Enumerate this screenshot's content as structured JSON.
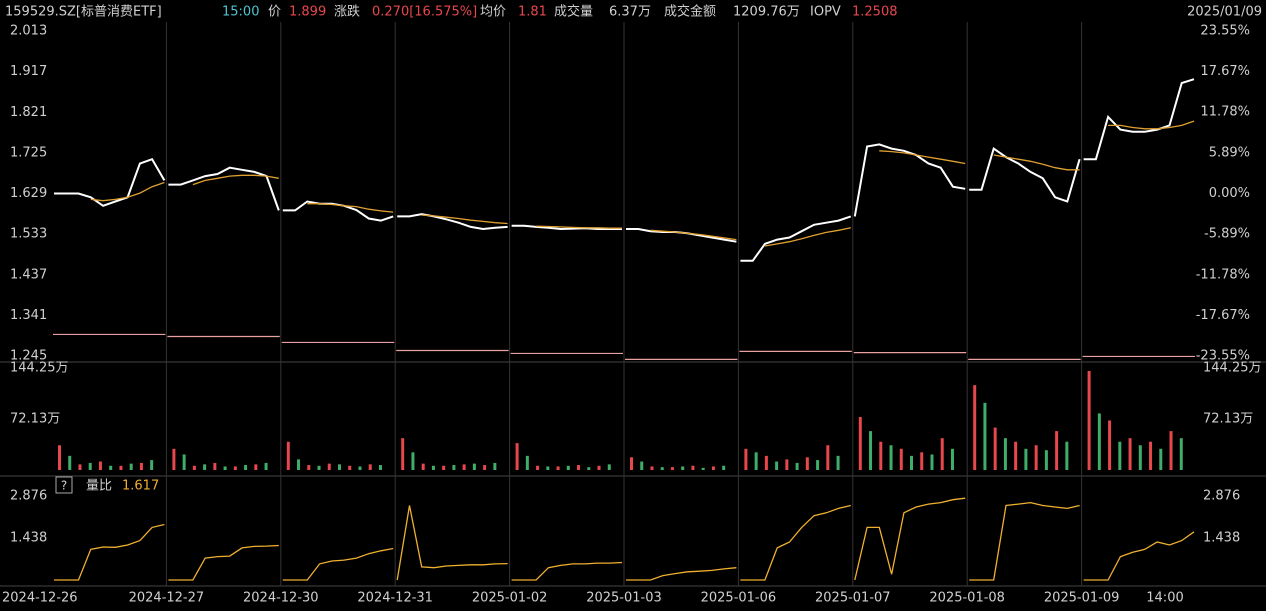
{
  "header": {
    "code": "159529.SZ[标普消费ETF]",
    "time": "15:00",
    "price_label": "价",
    "price": "1.899",
    "change_label": "涨跌",
    "change": "0.270[16.575%]",
    "avg_label": "均价",
    "avg": "1.81",
    "volume_label": "成交量",
    "volume": "6.37万",
    "amount_label": "成交金额",
    "amount": "1209.76万",
    "iopv_label": "IOPV",
    "iopv": "1.2508",
    "date": "2025/01/09"
  },
  "chart_data": [
    {
      "type": "line",
      "categories": [
        "2024-12-26",
        "2024-12-27",
        "2024-12-30",
        "2024-12-31",
        "2025-01-02",
        "2025-01-03",
        "2025-01-06",
        "2025-01-07",
        "2025-01-08",
        "2025-01-09"
      ],
      "ylim": [
        1.245,
        2.013
      ],
      "yticks": [
        2.013,
        1.917,
        1.821,
        1.725,
        1.629,
        1.533,
        1.437,
        1.341,
        1.245
      ],
      "y2lim": [
        -23.55,
        23.55
      ],
      "y2ticks": [
        {
          "value": 23.55,
          "label": "23.55%"
        },
        {
          "value": 17.67,
          "label": "17.67%"
        },
        {
          "value": 11.78,
          "label": "11.78%"
        },
        {
          "value": 5.89,
          "label": "5.89%"
        },
        {
          "value": 0,
          "label": "0.00%"
        },
        {
          "value": -5.89,
          "label": "-5.89%"
        },
        {
          "value": -11.78,
          "label": "-11.78%"
        },
        {
          "value": -17.67,
          "label": "-17.67%"
        },
        {
          "value": -23.55,
          "label": "-23.55%"
        }
      ],
      "series": [
        {
          "color": "#ffffff",
          "values": [
            [
              1.629,
              1.629,
              1.629,
              1.62,
              1.6,
              1.61,
              1.62,
              1.7,
              1.71,
              1.66
            ],
            [
              1.65,
              1.65,
              1.66,
              1.67,
              1.675,
              1.69,
              1.685,
              1.68,
              1.67,
              1.589
            ],
            [
              1.589,
              1.589,
              1.61,
              1.605,
              1.605,
              1.6,
              1.59,
              1.57,
              1.565,
              1.575
            ],
            [
              1.575,
              1.575,
              1.58,
              1.575,
              1.568,
              1.56,
              1.55,
              1.545,
              1.548,
              1.55
            ],
            [
              1.553,
              1.553,
              1.55,
              1.548,
              1.545,
              1.546,
              1.547,
              1.545,
              1.545,
              1.545
            ],
            [
              1.545,
              1.545,
              1.54,
              1.538,
              1.538,
              1.535,
              1.53,
              1.525,
              1.52,
              1.515
            ],
            [
              1.47,
              1.47,
              1.51,
              1.52,
              1.525,
              1.54,
              1.555,
              1.56,
              1.565,
              1.575
            ],
            [
              1.575,
              1.74,
              1.745,
              1.735,
              1.73,
              1.72,
              1.7,
              1.69,
              1.645,
              1.64
            ],
            [
              1.638,
              1.638,
              1.735,
              1.715,
              1.7,
              1.68,
              1.665,
              1.62,
              1.61,
              1.71
            ],
            [
              1.71,
              1.71,
              1.81,
              1.78,
              1.775,
              1.775,
              1.78,
              1.79,
              1.89,
              1.899
            ]
          ]
        },
        {
          "color": "#e0a030",
          "values": [
            [
              null,
              null,
              null,
              1.615,
              1.612,
              1.615,
              1.62,
              1.63,
              1.645,
              1.655
            ],
            [
              null,
              null,
              1.65,
              1.66,
              1.665,
              1.67,
              1.672,
              1.672,
              1.67,
              1.665
            ],
            [
              null,
              null,
              1.605,
              1.605,
              1.603,
              1.6,
              1.598,
              1.592,
              1.588,
              1.585
            ],
            [
              null,
              null,
              1.578,
              1.576,
              1.573,
              1.57,
              1.566,
              1.563,
              1.56,
              1.558
            ],
            [
              null,
              null,
              1.552,
              1.551,
              1.55,
              1.549,
              1.548,
              1.548,
              1.547,
              1.547
            ],
            [
              null,
              null,
              1.542,
              1.54,
              1.538,
              1.535,
              1.532,
              1.528,
              1.524,
              1.52
            ],
            [
              null,
              null,
              1.505,
              1.51,
              1.515,
              1.522,
              1.53,
              1.537,
              1.542,
              1.548
            ],
            [
              null,
              null,
              1.73,
              1.728,
              1.725,
              1.72,
              1.715,
              1.71,
              1.705,
              1.7
            ],
            [
              null,
              null,
              1.72,
              1.715,
              1.71,
              1.705,
              1.698,
              1.69,
              1.685,
              1.685
            ],
            [
              null,
              null,
              1.79,
              1.79,
              1.785,
              1.782,
              1.782,
              1.785,
              1.79,
              1.8
            ]
          ]
        },
        {
          "color": "#e8a0a0",
          "values": [
            1.296,
            1.291,
            1.277,
            1.258,
            1.251,
            1.237,
            1.256,
            1.253,
            1.237,
            1.244
          ]
        }
      ]
    },
    {
      "type": "bar",
      "ylim": [
        0,
        144.25
      ],
      "yticks": [
        {
          "value": 144.25,
          "label": "144.25万"
        },
        {
          "value": 72.13,
          "label": "72.13万"
        }
      ],
      "series": [
        {
          "color": "#e8474c",
          "values": [
            [
              35,
              8,
              12,
              6,
              10
            ],
            [
              30,
              6,
              10,
              5,
              8
            ],
            [
              40,
              7,
              9,
              6,
              8
            ],
            [
              45,
              9,
              6,
              8,
              7
            ],
            [
              38,
              6,
              5,
              7,
              6
            ],
            [
              18,
              5,
              4,
              6,
              5
            ],
            [
              30,
              20,
              15,
              18,
              35
            ],
            [
              75,
              40,
              30,
              25,
              45
            ],
            [
              120,
              60,
              40,
              35,
              55
            ],
            [
              140,
              70,
              45,
              40,
              55
            ]
          ]
        },
        {
          "color": "#3fae6a",
          "values": [
            [
              20,
              10,
              6,
              9,
              14
            ],
            [
              22,
              8,
              5,
              7,
              10
            ],
            [
              15,
              6,
              8,
              5,
              7
            ],
            [
              25,
              6,
              7,
              9,
              10
            ],
            [
              20,
              5,
              6,
              4,
              8
            ],
            [
              12,
              4,
              5,
              3,
              6
            ],
            [
              25,
              12,
              10,
              14,
              20
            ],
            [
              55,
              35,
              20,
              22,
              30
            ],
            [
              95,
              45,
              30,
              28,
              40
            ],
            [
              80,
              40,
              35,
              30,
              45
            ]
          ]
        }
      ]
    },
    {
      "type": "line",
      "title": "量比",
      "current": "1.617",
      "time_label": "14:00",
      "ylim": [
        0,
        2.876
      ],
      "yticks": [
        2.876,
        1.438
      ],
      "series": [
        {
          "color": "#f0b030",
          "values": [
            [
              0,
              0,
              0,
              1.05,
              1.13,
              1.12,
              1.2,
              1.35,
              1.8,
              1.9
            ],
            [
              0,
              0,
              0,
              0.75,
              0.8,
              0.82,
              1.1,
              1.15,
              1.16,
              1.18
            ],
            [
              0,
              0,
              0,
              0.55,
              0.65,
              0.68,
              0.75,
              0.9,
              1.0,
              1.08
            ],
            [
              0,
              2.55,
              0.45,
              0.42,
              0.48,
              0.5,
              0.52,
              0.52,
              0.55,
              0.56
            ],
            [
              0,
              0,
              0,
              0.42,
              0.5,
              0.55,
              0.55,
              0.58,
              0.58,
              0.6
            ],
            [
              0,
              0,
              0,
              0.15,
              0.22,
              0.28,
              0.3,
              0.33,
              0.38,
              0.42
            ],
            [
              0,
              0,
              0,
              1.1,
              1.3,
              1.8,
              2.2,
              2.3,
              2.45,
              2.55
            ],
            [
              0,
              1.8,
              1.8,
              0.2,
              2.3,
              2.5,
              2.6,
              2.65,
              2.75,
              2.8
            ],
            [
              0,
              0,
              0,
              2.55,
              2.6,
              2.65,
              2.55,
              2.5,
              2.45,
              2.55
            ],
            [
              0,
              0,
              0,
              0.8,
              0.95,
              1.05,
              1.3,
              1.2,
              1.35,
              1.65
            ]
          ]
        }
      ]
    }
  ]
}
